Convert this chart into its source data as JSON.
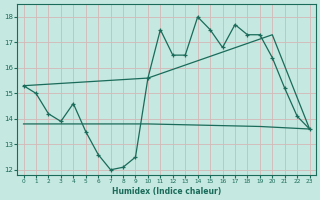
{
  "xlabel": "Humidex (Indice chaleur)",
  "xlim": [
    -0.5,
    23.5
  ],
  "ylim": [
    11.8,
    18.5
  ],
  "yticks": [
    12,
    13,
    14,
    15,
    16,
    17,
    18
  ],
  "xticks": [
    0,
    1,
    2,
    3,
    4,
    5,
    6,
    7,
    8,
    9,
    10,
    11,
    12,
    13,
    14,
    15,
    16,
    17,
    18,
    19,
    20,
    21,
    22,
    23
  ],
  "bg_color": "#c5e8e0",
  "line_color": "#1a6b5a",
  "grid_color": "#b0d8ce",
  "line1_x": [
    0,
    1,
    2,
    3,
    4,
    5,
    6,
    7,
    8,
    9,
    10,
    11,
    12,
    13,
    14,
    15,
    16,
    17,
    18,
    19,
    20,
    21,
    22,
    23
  ],
  "line1_y": [
    15.3,
    15.0,
    14.2,
    13.9,
    14.6,
    13.5,
    12.6,
    12.0,
    12.1,
    12.5,
    15.6,
    17.5,
    16.5,
    16.5,
    18.0,
    17.5,
    16.8,
    17.7,
    17.3,
    17.3,
    16.4,
    15.2,
    14.1,
    13.6
  ],
  "line2_x": [
    0,
    10,
    19,
    23
  ],
  "line2_y": [
    13.8,
    13.8,
    13.7,
    13.6
  ],
  "line3_x": [
    0,
    10,
    20,
    23
  ],
  "line3_y": [
    15.3,
    15.6,
    17.3,
    13.6
  ]
}
